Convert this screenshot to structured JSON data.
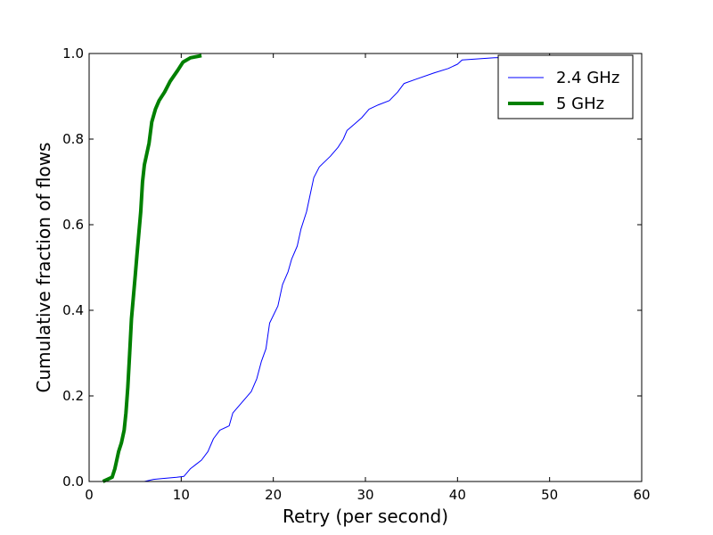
{
  "chart_data": {
    "type": "line",
    "title": "",
    "xlabel": "Retry (per second)",
    "ylabel": "Cumulative fraction of flows",
    "xlim": [
      0,
      60
    ],
    "ylim": [
      0.0,
      1.0
    ],
    "xticks": [
      "0",
      "10",
      "20",
      "30",
      "40",
      "50",
      "60"
    ],
    "yticks": [
      "0.0",
      "0.2",
      "0.4",
      "0.6",
      "0.8",
      "1.0"
    ],
    "grid": false,
    "legend_position": "top-right",
    "series": [
      {
        "name": "2.4 GHz",
        "color": "#0000ff",
        "points": [
          [
            6.0,
            0.0
          ],
          [
            7.0,
            0.005
          ],
          [
            8.0,
            0.007
          ],
          [
            9.5,
            0.01
          ],
          [
            10.3,
            0.012
          ],
          [
            11.0,
            0.03
          ],
          [
            11.6,
            0.04
          ],
          [
            12.2,
            0.05
          ],
          [
            12.9,
            0.07
          ],
          [
            13.5,
            0.1
          ],
          [
            14.2,
            0.12
          ],
          [
            15.2,
            0.13
          ],
          [
            15.6,
            0.16
          ],
          [
            16.8,
            0.19
          ],
          [
            17.6,
            0.21
          ],
          [
            18.2,
            0.24
          ],
          [
            18.7,
            0.28
          ],
          [
            19.2,
            0.31
          ],
          [
            19.6,
            0.37
          ],
          [
            20.5,
            0.41
          ],
          [
            21.0,
            0.46
          ],
          [
            21.6,
            0.49
          ],
          [
            22.0,
            0.52
          ],
          [
            22.6,
            0.55
          ],
          [
            23.0,
            0.59
          ],
          [
            23.6,
            0.63
          ],
          [
            24.0,
            0.67
          ],
          [
            24.4,
            0.71
          ],
          [
            25.0,
            0.735
          ],
          [
            26.2,
            0.76
          ],
          [
            27.0,
            0.78
          ],
          [
            27.6,
            0.8
          ],
          [
            28.0,
            0.82
          ],
          [
            28.8,
            0.835
          ],
          [
            29.6,
            0.85
          ],
          [
            30.0,
            0.86
          ],
          [
            30.4,
            0.87
          ],
          [
            31.4,
            0.88
          ],
          [
            32.6,
            0.89
          ],
          [
            33.5,
            0.91
          ],
          [
            34.2,
            0.93
          ],
          [
            35.5,
            0.94
          ],
          [
            37.5,
            0.955
          ],
          [
            39.0,
            0.965
          ],
          [
            40.0,
            0.975
          ],
          [
            40.5,
            0.985
          ],
          [
            44.0,
            0.99
          ],
          [
            50.0,
            0.993
          ],
          [
            54.5,
            0.995
          ]
        ]
      },
      {
        "name": "5 GHz",
        "color": "#008000",
        "points": [
          [
            1.5,
            0.0
          ],
          [
            2.0,
            0.005
          ],
          [
            2.5,
            0.01
          ],
          [
            2.8,
            0.03
          ],
          [
            3.0,
            0.05
          ],
          [
            3.2,
            0.07
          ],
          [
            3.5,
            0.09
          ],
          [
            3.8,
            0.12
          ],
          [
            4.0,
            0.16
          ],
          [
            4.2,
            0.22
          ],
          [
            4.4,
            0.3
          ],
          [
            4.6,
            0.38
          ],
          [
            4.8,
            0.43
          ],
          [
            5.0,
            0.48
          ],
          [
            5.2,
            0.53
          ],
          [
            5.4,
            0.58
          ],
          [
            5.6,
            0.63
          ],
          [
            5.8,
            0.7
          ],
          [
            6.0,
            0.74
          ],
          [
            6.2,
            0.76
          ],
          [
            6.5,
            0.79
          ],
          [
            6.8,
            0.84
          ],
          [
            7.2,
            0.87
          ],
          [
            7.6,
            0.89
          ],
          [
            8.2,
            0.91
          ],
          [
            8.8,
            0.935
          ],
          [
            9.6,
            0.96
          ],
          [
            10.2,
            0.98
          ],
          [
            11.0,
            0.99
          ],
          [
            12.2,
            0.995
          ]
        ]
      }
    ]
  }
}
